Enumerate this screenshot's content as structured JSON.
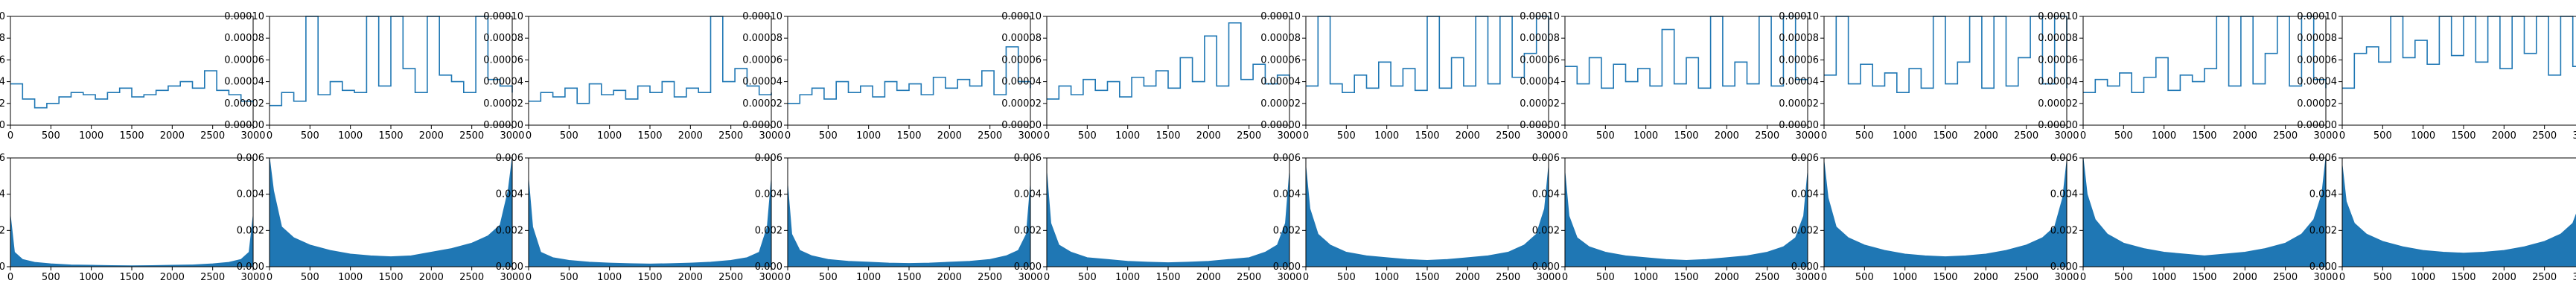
{
  "figure": {
    "rows": 2,
    "cols": 10
  },
  "style": {
    "line_color": "#1f77b4",
    "axes_color": "#000000",
    "background": "#ffffff"
  },
  "row_axes": [
    {
      "xlim": [
        0,
        3000
      ],
      "ylim": [
        0,
        0.0001
      ],
      "xticks": [
        0,
        500,
        1000,
        1500,
        2000,
        2500,
        3000
      ],
      "xtick_labels": [
        "0",
        "500",
        "1000",
        "1500",
        "2000",
        "2500",
        "3000"
      ],
      "yticks": [
        0,
        2e-05,
        4e-05,
        6e-05,
        8e-05,
        0.0001
      ],
      "ytick_labels": [
        "0.00000",
        "0.00002",
        "0.00004",
        "0.00006",
        "0.00008",
        "0.00010"
      ]
    },
    {
      "xlim": [
        0,
        3000
      ],
      "ylim": [
        0,
        0.006
      ],
      "xticks": [
        0,
        500,
        1000,
        1500,
        2000,
        2500,
        3000
      ],
      "xtick_labels": [
        "0",
        "500",
        "1000",
        "1500",
        "2000",
        "2500",
        "3000"
      ],
      "yticks": [
        0,
        0.002,
        0.004,
        0.006
      ],
      "ytick_labels": [
        "0.000",
        "0.002",
        "0.004",
        "0.006"
      ]
    }
  ],
  "chart_data": [
    {
      "type": "line",
      "row": 1,
      "col": 1,
      "x": [
        0,
        150,
        300,
        450,
        600,
        750,
        900,
        1050,
        1200,
        1350,
        1500,
        1650,
        1800,
        1950,
        2100,
        2250,
        2400,
        2550,
        2700,
        2850,
        3000
      ],
      "series": [
        {
          "values": [
            3.8e-05,
            2.4e-05,
            1.6e-05,
            2e-05,
            2.6e-05,
            3e-05,
            2.8e-05,
            2.4e-05,
            3e-05,
            3.4e-05,
            2.6e-05,
            2.8e-05,
            3.2e-05,
            3.6e-05,
            4e-05,
            3.4e-05,
            5e-05,
            3.2e-05,
            2.8e-05,
            2.2e-05,
            2e-05
          ]
        }
      ],
      "xlim": [
        0,
        3000
      ],
      "ylim": [
        0,
        0.0001
      ]
    },
    {
      "type": "line",
      "row": 1,
      "col": 2,
      "x": [
        0,
        150,
        300,
        450,
        600,
        750,
        900,
        1050,
        1200,
        1350,
        1500,
        1650,
        1800,
        1950,
        2100,
        2250,
        2400,
        2550,
        2700,
        2850,
        3000
      ],
      "series": [
        {
          "values": [
            1.8e-05,
            3e-05,
            2.2e-05,
            0.0001,
            2.8e-05,
            4e-05,
            3.2e-05,
            3e-05,
            0.0001,
            3.6e-05,
            0.0001,
            5.2e-05,
            3e-05,
            0.0001,
            4.6e-05,
            4e-05,
            3e-05,
            0.0001,
            4.2e-05,
            3.6e-05,
            3e-05
          ]
        }
      ],
      "xlim": [
        0,
        3000
      ],
      "ylim": [
        0,
        0.0001
      ]
    },
    {
      "type": "line",
      "row": 1,
      "col": 3,
      "x": [
        0,
        150,
        300,
        450,
        600,
        750,
        900,
        1050,
        1200,
        1350,
        1500,
        1650,
        1800,
        1950,
        2100,
        2250,
        2400,
        2550,
        2700,
        2850,
        3000
      ],
      "series": [
        {
          "values": [
            2.2e-05,
            3e-05,
            2.6e-05,
            3.4e-05,
            2e-05,
            3.8e-05,
            2.8e-05,
            3.2e-05,
            2.4e-05,
            3.6e-05,
            3e-05,
            4e-05,
            2.6e-05,
            3.4e-05,
            3e-05,
            0.0001,
            4e-05,
            5.2e-05,
            3.6e-05,
            2.8e-05,
            3e-05
          ]
        }
      ],
      "xlim": [
        0,
        3000
      ],
      "ylim": [
        0,
        0.0001
      ]
    },
    {
      "type": "line",
      "row": 1,
      "col": 4,
      "x": [
        0,
        150,
        300,
        450,
        600,
        750,
        900,
        1050,
        1200,
        1350,
        1500,
        1650,
        1800,
        1950,
        2100,
        2250,
        2400,
        2550,
        2700,
        2850,
        3000
      ],
      "series": [
        {
          "values": [
            2e-05,
            2.8e-05,
            3.4e-05,
            2.4e-05,
            4e-05,
            3e-05,
            3.6e-05,
            2.6e-05,
            4e-05,
            3.2e-05,
            3.8e-05,
            2.8e-05,
            4.4e-05,
            3.4e-05,
            4.2e-05,
            3.6e-05,
            5e-05,
            2.8e-05,
            7.2e-05,
            4e-05,
            3.4e-05
          ]
        }
      ],
      "xlim": [
        0,
        3000
      ],
      "ylim": [
        0,
        0.0001
      ]
    },
    {
      "type": "line",
      "row": 1,
      "col": 5,
      "x": [
        0,
        150,
        300,
        450,
        600,
        750,
        900,
        1050,
        1200,
        1350,
        1500,
        1650,
        1800,
        1950,
        2100,
        2250,
        2400,
        2550,
        2700,
        2850,
        3000
      ],
      "series": [
        {
          "values": [
            2.4e-05,
            3.6e-05,
            2.8e-05,
            4.2e-05,
            3.2e-05,
            4e-05,
            2.6e-05,
            4.4e-05,
            3.6e-05,
            5e-05,
            3.4e-05,
            6.2e-05,
            4e-05,
            8.2e-05,
            3.6e-05,
            9.4e-05,
            4.2e-05,
            5.6e-05,
            3.8e-05,
            4.6e-05,
            4e-05
          ]
        }
      ],
      "xlim": [
        0,
        3000
      ],
      "ylim": [
        0,
        0.0001
      ]
    },
    {
      "type": "line",
      "row": 1,
      "col": 6,
      "x": [
        0,
        150,
        300,
        450,
        600,
        750,
        900,
        1050,
        1200,
        1350,
        1500,
        1650,
        1800,
        1950,
        2100,
        2250,
        2400,
        2550,
        2700,
        2850,
        3000
      ],
      "series": [
        {
          "values": [
            3.6e-05,
            0.0001,
            3.8e-05,
            3e-05,
            4.6e-05,
            3.4e-05,
            5.8e-05,
            3.6e-05,
            5.2e-05,
            3.2e-05,
            0.0001,
            3.4e-05,
            6.2e-05,
            3.6e-05,
            0.0001,
            3.8e-05,
            0.0001,
            4.4e-05,
            6.6e-05,
            0.0001,
            3.8e-05
          ]
        }
      ],
      "xlim": [
        0,
        3000
      ],
      "ylim": [
        0,
        0.0001
      ]
    },
    {
      "type": "line",
      "row": 1,
      "col": 7,
      "x": [
        0,
        150,
        300,
        450,
        600,
        750,
        900,
        1050,
        1200,
        1350,
        1500,
        1650,
        1800,
        1950,
        2100,
        2250,
        2400,
        2550,
        2700,
        2850,
        3000
      ],
      "series": [
        {
          "values": [
            5.4e-05,
            3.8e-05,
            6.2e-05,
            3.4e-05,
            5.6e-05,
            4e-05,
            5.2e-05,
            3.6e-05,
            8.8e-05,
            3.8e-05,
            6.2e-05,
            3.4e-05,
            0.0001,
            3.6e-05,
            5.8e-05,
            3.8e-05,
            0.0001,
            3.6e-05,
            0.0001,
            4.2e-05,
            3.8e-05
          ]
        }
      ],
      "xlim": [
        0,
        3000
      ],
      "ylim": [
        0,
        0.0001
      ]
    },
    {
      "type": "line",
      "row": 1,
      "col": 8,
      "x": [
        0,
        150,
        300,
        450,
        600,
        750,
        900,
        1050,
        1200,
        1350,
        1500,
        1650,
        1800,
        1950,
        2100,
        2250,
        2400,
        2550,
        2700,
        2850,
        3000
      ],
      "series": [
        {
          "values": [
            4.6e-05,
            0.0001,
            3.8e-05,
            5.6e-05,
            3.6e-05,
            4.8e-05,
            3e-05,
            5.2e-05,
            3.4e-05,
            0.0001,
            3.8e-05,
            5.8e-05,
            0.0001,
            3.4e-05,
            0.0001,
            3.6e-05,
            6.2e-05,
            0.0001,
            3.8e-05,
            0.0001,
            3.4e-05
          ]
        }
      ],
      "xlim": [
        0,
        3000
      ],
      "ylim": [
        0,
        0.0001
      ]
    },
    {
      "type": "line",
      "row": 1,
      "col": 9,
      "x": [
        0,
        150,
        300,
        450,
        600,
        750,
        900,
        1050,
        1200,
        1350,
        1500,
        1650,
        1800,
        1950,
        2100,
        2250,
        2400,
        2550,
        2700,
        2850,
        3000
      ],
      "series": [
        {
          "values": [
            3e-05,
            4.2e-05,
            3.6e-05,
            4.8e-05,
            3e-05,
            4.4e-05,
            6.2e-05,
            3.2e-05,
            4.6e-05,
            4e-05,
            5.2e-05,
            0.0001,
            3.6e-05,
            0.0001,
            3.8e-05,
            6.6e-05,
            0.0001,
            3.6e-05,
            0.0001,
            4.2e-05,
            3.4e-05
          ]
        }
      ],
      "xlim": [
        0,
        3000
      ],
      "ylim": [
        0,
        0.0001
      ]
    },
    {
      "type": "line",
      "row": 1,
      "col": 10,
      "x": [
        0,
        150,
        300,
        450,
        600,
        750,
        900,
        1050,
        1200,
        1350,
        1500,
        1650,
        1800,
        1950,
        2100,
        2250,
        2400,
        2550,
        2700,
        2850,
        3000
      ],
      "series": [
        {
          "values": [
            3.4e-05,
            6.6e-05,
            7.2e-05,
            5.8e-05,
            0.0001,
            6.2e-05,
            7.8e-05,
            5.6e-05,
            0.0001,
            6.4e-05,
            0.0001,
            5.8e-05,
            0.0001,
            5.2e-05,
            0.0001,
            6.6e-05,
            0.0001,
            4.6e-05,
            0.0001,
            5.4e-05,
            4e-05
          ]
        }
      ],
      "xlim": [
        0,
        3000
      ],
      "ylim": [
        0,
        0.0001
      ]
    },
    {
      "type": "area",
      "row": 2,
      "col": 1,
      "x": [
        0,
        50,
        150,
        300,
        500,
        750,
        1000,
        1250,
        1500,
        1750,
        2000,
        2250,
        2500,
        2700,
        2850,
        2950,
        3000
      ],
      "series": [
        {
          "values": [
            0.0028,
            0.0008,
            0.0004,
            0.00024,
            0.00016,
            0.0001,
            8e-05,
            6e-05,
            5e-05,
            6e-05,
            8e-05,
            0.0001,
            0.00016,
            0.00024,
            0.0004,
            0.0008,
            0.0028
          ]
        }
      ],
      "xlim": [
        0,
        3000
      ],
      "ylim": [
        0,
        0.006
      ]
    },
    {
      "type": "area",
      "row": 2,
      "col": 2,
      "x": [
        0,
        50,
        150,
        300,
        500,
        750,
        1000,
        1250,
        1500,
        1750,
        2000,
        2250,
        2500,
        2700,
        2850,
        2950,
        3000
      ],
      "series": [
        {
          "values": [
            0.006,
            0.0042,
            0.0022,
            0.0016,
            0.0012,
            0.0009,
            0.0007,
            0.0006,
            0.00055,
            0.0006,
            0.0008,
            0.001,
            0.0013,
            0.0017,
            0.0023,
            0.0042,
            0.006
          ]
        }
      ],
      "xlim": [
        0,
        3000
      ],
      "ylim": [
        0,
        0.006
      ]
    },
    {
      "type": "area",
      "row": 2,
      "col": 3,
      "x": [
        0,
        50,
        150,
        300,
        500,
        750,
        1000,
        1250,
        1500,
        1750,
        2000,
        2250,
        2500,
        2700,
        2850,
        2950,
        3000
      ],
      "series": [
        {
          "values": [
            0.0048,
            0.0022,
            0.0008,
            0.0005,
            0.00035,
            0.00025,
            0.0002,
            0.00017,
            0.00015,
            0.00017,
            0.0002,
            0.00025,
            0.00035,
            0.0005,
            0.0008,
            0.0022,
            0.0048
          ]
        }
      ],
      "xlim": [
        0,
        3000
      ],
      "ylim": [
        0,
        0.006
      ]
    },
    {
      "type": "area",
      "row": 2,
      "col": 4,
      "x": [
        0,
        50,
        150,
        300,
        500,
        750,
        1000,
        1250,
        1500,
        1750,
        2000,
        2250,
        2500,
        2700,
        2850,
        2950,
        3000
      ],
      "series": [
        {
          "values": [
            0.0045,
            0.0018,
            0.0009,
            0.0006,
            0.0004,
            0.0003,
            0.00025,
            0.0002,
            0.00018,
            0.0002,
            0.00025,
            0.0003,
            0.0004,
            0.0006,
            0.0009,
            0.0018,
            0.0045
          ]
        }
      ],
      "xlim": [
        0,
        3000
      ],
      "ylim": [
        0,
        0.006
      ]
    },
    {
      "type": "area",
      "row": 2,
      "col": 5,
      "x": [
        0,
        50,
        150,
        300,
        500,
        750,
        1000,
        1250,
        1500,
        1750,
        2000,
        2250,
        2500,
        2700,
        2850,
        2950,
        3000
      ],
      "series": [
        {
          "values": [
            0.0052,
            0.0024,
            0.0012,
            0.0008,
            0.0005,
            0.0004,
            0.0003,
            0.00025,
            0.00022,
            0.00025,
            0.0003,
            0.0004,
            0.0005,
            0.0008,
            0.0012,
            0.0024,
            0.0052
          ]
        }
      ],
      "xlim": [
        0,
        3000
      ],
      "ylim": [
        0,
        0.006
      ]
    },
    {
      "type": "area",
      "row": 2,
      "col": 6,
      "x": [
        0,
        50,
        150,
        300,
        500,
        750,
        1000,
        1250,
        1500,
        1750,
        2000,
        2250,
        2500,
        2700,
        2850,
        2950,
        3000
      ],
      "series": [
        {
          "values": [
            0.0055,
            0.0032,
            0.0018,
            0.0012,
            0.0008,
            0.0006,
            0.0005,
            0.0004,
            0.00035,
            0.0004,
            0.0005,
            0.0006,
            0.0008,
            0.0012,
            0.0018,
            0.0032,
            0.0055
          ]
        }
      ],
      "xlim": [
        0,
        3000
      ],
      "ylim": [
        0,
        0.006
      ]
    },
    {
      "type": "area",
      "row": 2,
      "col": 7,
      "x": [
        0,
        50,
        150,
        300,
        500,
        750,
        1000,
        1250,
        1500,
        1750,
        2000,
        2250,
        2500,
        2700,
        2850,
        2950,
        3000
      ],
      "series": [
        {
          "values": [
            0.0052,
            0.0028,
            0.0016,
            0.0011,
            0.0008,
            0.0006,
            0.0005,
            0.0004,
            0.00035,
            0.0004,
            0.0005,
            0.0006,
            0.0008,
            0.0011,
            0.0016,
            0.0028,
            0.0052
          ]
        }
      ],
      "xlim": [
        0,
        3000
      ],
      "ylim": [
        0,
        0.006
      ]
    },
    {
      "type": "area",
      "row": 2,
      "col": 8,
      "x": [
        0,
        50,
        150,
        300,
        500,
        750,
        1000,
        1250,
        1500,
        1750,
        2000,
        2250,
        2500,
        2700,
        2850,
        2950,
        3000
      ],
      "series": [
        {
          "values": [
            0.0058,
            0.0038,
            0.0022,
            0.0016,
            0.0012,
            0.0009,
            0.0007,
            0.0006,
            0.00055,
            0.0006,
            0.0007,
            0.0009,
            0.0012,
            0.0016,
            0.0022,
            0.0038,
            0.0058
          ]
        }
      ],
      "xlim": [
        0,
        3000
      ],
      "ylim": [
        0,
        0.006
      ]
    },
    {
      "type": "area",
      "row": 2,
      "col": 9,
      "x": [
        0,
        50,
        150,
        300,
        500,
        750,
        1000,
        1250,
        1500,
        1750,
        2000,
        2250,
        2500,
        2700,
        2850,
        2950,
        3000
      ],
      "series": [
        {
          "values": [
            0.006,
            0.004,
            0.0026,
            0.0018,
            0.0013,
            0.001,
            0.0008,
            0.0007,
            0.0006,
            0.0007,
            0.0008,
            0.001,
            0.0013,
            0.0018,
            0.0026,
            0.004,
            0.006
          ]
        }
      ],
      "xlim": [
        0,
        3000
      ],
      "ylim": [
        0,
        0.006
      ]
    },
    {
      "type": "area",
      "row": 2,
      "col": 10,
      "x": [
        0,
        50,
        150,
        300,
        500,
        750,
        1000,
        1250,
        1500,
        1750,
        2000,
        2250,
        2500,
        2700,
        2850,
        2950,
        3000
      ],
      "series": [
        {
          "values": [
            0.0056,
            0.0036,
            0.0024,
            0.0018,
            0.0014,
            0.0011,
            0.0009,
            0.0008,
            0.00075,
            0.0008,
            0.0009,
            0.0011,
            0.0014,
            0.0018,
            0.0024,
            0.0036,
            0.0056
          ]
        }
      ],
      "xlim": [
        0,
        3000
      ],
      "ylim": [
        0,
        0.006
      ]
    }
  ]
}
